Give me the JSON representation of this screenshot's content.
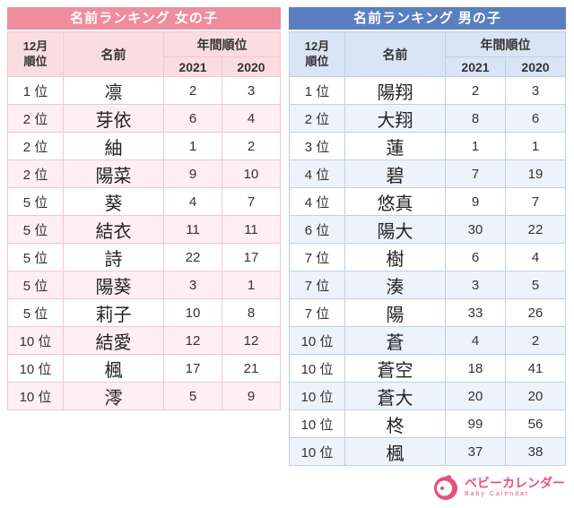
{
  "chart_data": [
    {
      "type": "table",
      "title": "名前ランキング 女の子",
      "accent_color": "#ef8d9d",
      "header_bg": "#fadde3",
      "alt_row_bg": "#fdeff3",
      "border_color": "#f2c6d1",
      "headers": {
        "rank": "12月\n順位",
        "name": "名前",
        "annual": "年間順位",
        "y2021": "2021",
        "y2020": "2020"
      },
      "rows": [
        {
          "rank": "1 位",
          "name": "凛",
          "y2021": "2",
          "y2020": "3"
        },
        {
          "rank": "2 位",
          "name": "芽依",
          "y2021": "6",
          "y2020": "4"
        },
        {
          "rank": "2 位",
          "name": "紬",
          "y2021": "1",
          "y2020": "2"
        },
        {
          "rank": "2 位",
          "name": "陽菜",
          "y2021": "9",
          "y2020": "10"
        },
        {
          "rank": "5 位",
          "name": "葵",
          "y2021": "4",
          "y2020": "7"
        },
        {
          "rank": "5 位",
          "name": "結衣",
          "y2021": "11",
          "y2020": "11"
        },
        {
          "rank": "5 位",
          "name": "詩",
          "y2021": "22",
          "y2020": "17"
        },
        {
          "rank": "5 位",
          "name": "陽葵",
          "y2021": "3",
          "y2020": "1"
        },
        {
          "rank": "5 位",
          "name": "莉子",
          "y2021": "10",
          "y2020": "8"
        },
        {
          "rank": "10 位",
          "name": "結愛",
          "y2021": "12",
          "y2020": "12"
        },
        {
          "rank": "10 位",
          "name": "楓",
          "y2021": "17",
          "y2020": "21"
        },
        {
          "rank": "10 位",
          "name": "澪",
          "y2021": "5",
          "y2020": "9"
        }
      ]
    },
    {
      "type": "table",
      "title": "名前ランキング 男の子",
      "accent_color": "#5a7ec2",
      "header_bg": "#d9e4f4",
      "alt_row_bg": "#edf3fb",
      "border_color": "#bdd0ea",
      "headers": {
        "rank": "12月\n順位",
        "name": "名前",
        "annual": "年間順位",
        "y2021": "2021",
        "y2020": "2020"
      },
      "rows": [
        {
          "rank": "1 位",
          "name": "陽翔",
          "y2021": "2",
          "y2020": "3"
        },
        {
          "rank": "2 位",
          "name": "大翔",
          "y2021": "8",
          "y2020": "6"
        },
        {
          "rank": "3 位",
          "name": "蓮",
          "y2021": "1",
          "y2020": "1"
        },
        {
          "rank": "4 位",
          "name": "碧",
          "y2021": "7",
          "y2020": "19"
        },
        {
          "rank": "4 位",
          "name": "悠真",
          "y2021": "9",
          "y2020": "7"
        },
        {
          "rank": "6 位",
          "name": "陽大",
          "y2021": "30",
          "y2020": "22"
        },
        {
          "rank": "7 位",
          "name": "樹",
          "y2021": "6",
          "y2020": "4"
        },
        {
          "rank": "7 位",
          "name": "湊",
          "y2021": "3",
          "y2020": "5"
        },
        {
          "rank": "7 位",
          "name": "陽",
          "y2021": "33",
          "y2020": "26"
        },
        {
          "rank": "10 位",
          "name": "蒼",
          "y2021": "4",
          "y2020": "2"
        },
        {
          "rank": "10 位",
          "name": "蒼空",
          "y2021": "18",
          "y2020": "41"
        },
        {
          "rank": "10 位",
          "name": "蒼大",
          "y2021": "20",
          "y2020": "20"
        },
        {
          "rank": "10 位",
          "name": "柊",
          "y2021": "99",
          "y2020": "56"
        },
        {
          "rank": "10 位",
          "name": "楓",
          "y2021": "37",
          "y2020": "38"
        }
      ]
    }
  ],
  "footer": {
    "brand": "ベビーカレンダー",
    "brand_sub": "Baby Calendar",
    "brand_color": "#e8527a"
  }
}
